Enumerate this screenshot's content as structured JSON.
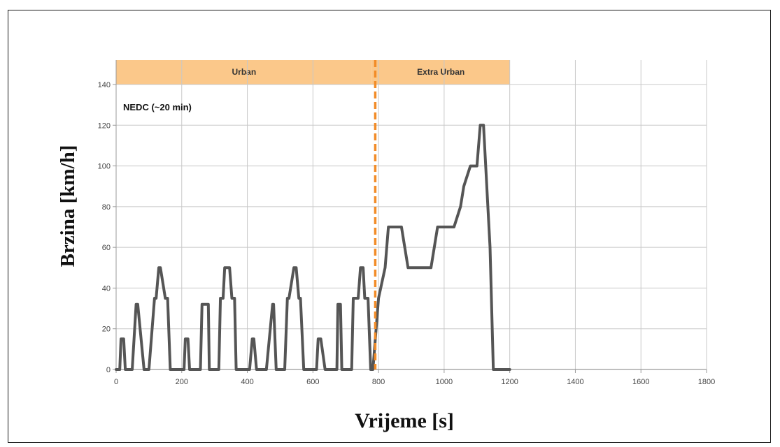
{
  "chart_data": {
    "type": "line",
    "title": "",
    "xlabel": "Vrijeme [s]",
    "ylabel": "Brzina [km/h]",
    "xlim": [
      0,
      1800
    ],
    "ylim": [
      0,
      150
    ],
    "xticks": [
      0,
      200,
      400,
      600,
      800,
      1000,
      1200,
      1400,
      1600,
      1800
    ],
    "yticks": [
      0,
      20,
      40,
      60,
      80,
      100,
      120,
      140
    ],
    "grid": true,
    "annotation": "NEDC (~20 min)",
    "bands": [
      {
        "label": "Urban",
        "x_start": 0,
        "x_end": 780,
        "color": "#fbc88a"
      },
      {
        "label": "Extra Urban",
        "x_start": 780,
        "x_end": 1200,
        "color": "#fbc88a"
      }
    ],
    "divider": {
      "x": 790,
      "color": "#f28c28"
    },
    "series": [
      {
        "line_color": "#555555",
        "x": [
          0,
          11,
          15,
          23,
          28,
          36,
          49,
          61,
          66,
          85,
          88,
          96,
          100,
          117,
          122,
          130,
          135,
          150,
          157,
          165,
          170,
          180,
          188,
          195,
          207,
          211,
          219,
          224,
          232,
          245,
          257,
          262,
          281,
          284,
          292,
          296,
          313,
          318,
          326,
          331,
          346,
          353,
          361,
          366,
          376,
          384,
          391,
          403,
          407,
          415,
          420,
          428,
          441,
          453,
          458,
          477,
          480,
          488,
          492,
          509,
          514,
          522,
          527,
          542,
          549,
          557,
          562,
          572,
          580,
          587,
          599,
          603,
          611,
          616,
          624,
          637,
          649,
          654,
          673,
          676,
          684,
          688,
          705,
          710,
          718,
          723,
          738,
          745,
          753,
          758,
          768,
          776,
          783,
          800,
          820,
          830,
          850,
          870,
          890,
          900,
          960,
          980,
          1000,
          1030,
          1050,
          1060,
          1080,
          1100,
          1110,
          1120,
          1140,
          1150,
          1160,
          1200
        ],
        "y": [
          0,
          0,
          15,
          15,
          0,
          0,
          0,
          32,
          32,
          0,
          0,
          0,
          0,
          35,
          35,
          50,
          50,
          35,
          35,
          0,
          0,
          0,
          0,
          0,
          0,
          15,
          15,
          0,
          0,
          0,
          0,
          32,
          32,
          0,
          0,
          0,
          0,
          35,
          35,
          50,
          50,
          35,
          35,
          0,
          0,
          0,
          0,
          0,
          0,
          15,
          15,
          0,
          0,
          0,
          0,
          32,
          32,
          0,
          0,
          0,
          0,
          35,
          35,
          50,
          50,
          35,
          35,
          0,
          0,
          0,
          0,
          0,
          0,
          15,
          15,
          0,
          0,
          0,
          0,
          32,
          32,
          0,
          0,
          0,
          0,
          35,
          35,
          50,
          50,
          35,
          35,
          0,
          0,
          35,
          50,
          70,
          70,
          70,
          50,
          50,
          50,
          70,
          70,
          70,
          80,
          90,
          100,
          100,
          120,
          120,
          60,
          0,
          0,
          0
        ]
      }
    ]
  }
}
